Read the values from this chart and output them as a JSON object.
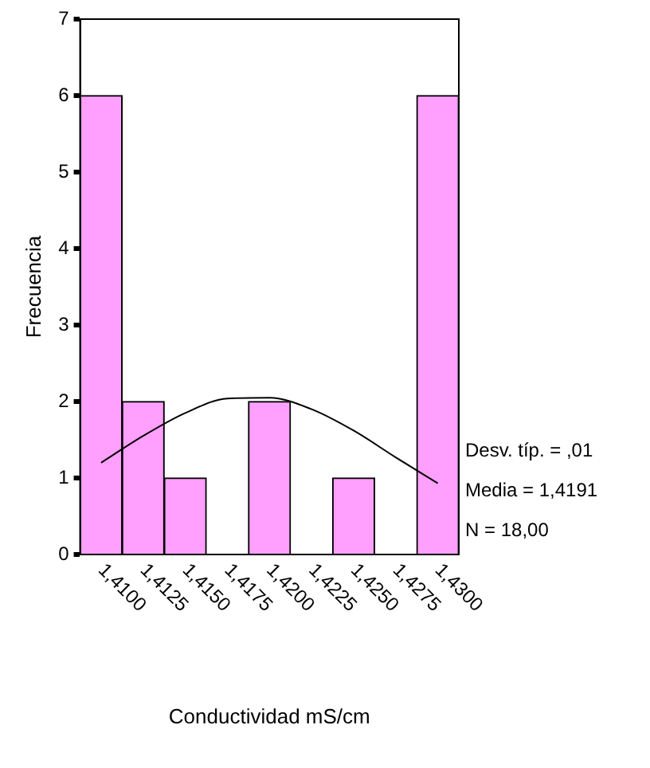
{
  "chart_data": {
    "type": "bar",
    "xlabel": "Conductividad mS/cm",
    "ylabel": "Frecuencia",
    "categories": [
      "1,4100",
      "1,4125",
      "1,4150",
      "1,4175",
      "1,4200",
      "1,4225",
      "1,4250",
      "1,4275",
      "1,4300"
    ],
    "values": [
      6,
      2,
      1,
      0,
      2,
      0,
      1,
      0,
      6
    ],
    "color": "#ffa0ff",
    "series": [
      {
        "type": "line",
        "color": "#000000",
        "values": [
          1.2,
          1.55,
          1.85,
          2.04,
          2.05,
          1.9,
          1.62,
          1.27,
          0.93
        ]
      }
    ],
    "ylim": [
      0,
      7
    ],
    "yticks": [
      0,
      1,
      2,
      3,
      4,
      5,
      6,
      7
    ],
    "grid": false,
    "legend": false,
    "annotations": [
      "Desv. típ. = ,01",
      "Media = 1,4191",
      "N = 18,00"
    ]
  }
}
